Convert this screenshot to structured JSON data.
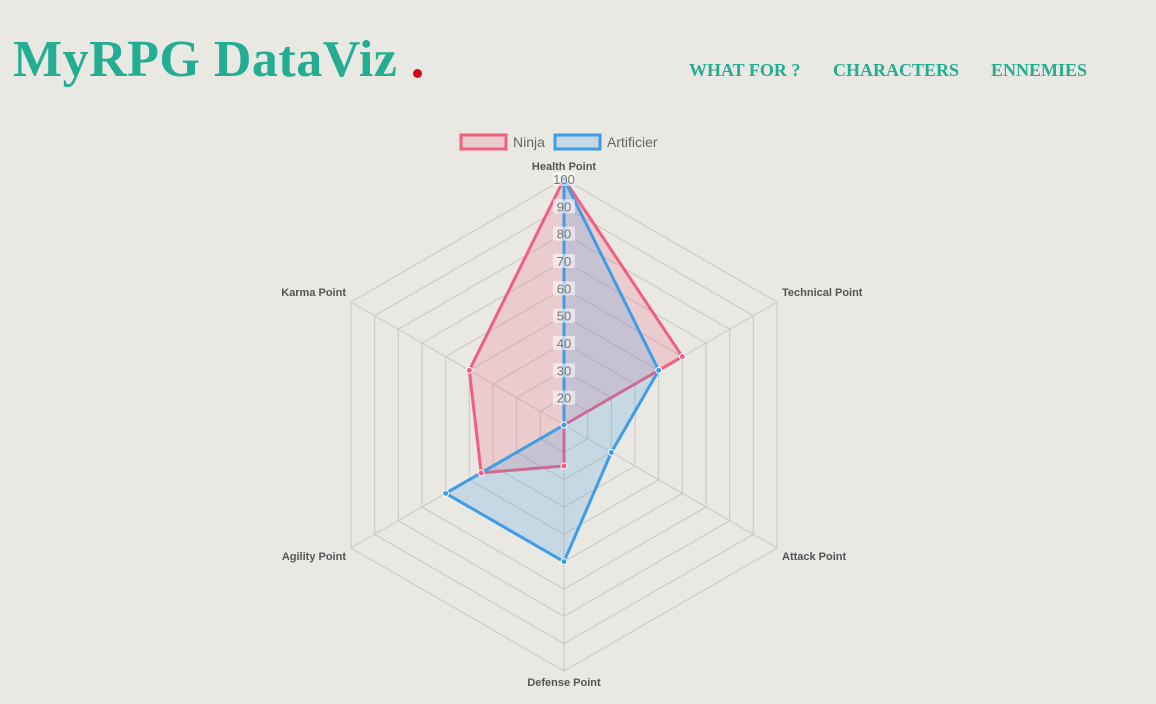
{
  "header": {
    "logo_text": "MyRPG DataViz",
    "nav": [
      {
        "label": "WHAT FOR ?"
      },
      {
        "label": "CHARACTERS"
      },
      {
        "label": "ENNEMIES"
      }
    ]
  },
  "colors": {
    "brand": "#23ad92",
    "background": "#e9e8e3",
    "logo_dot": "#d0091a",
    "grid": "#c8c7c2"
  },
  "chart_data": {
    "type": "radar",
    "axes": [
      "Health Point",
      "Technical Point",
      "Attack Point",
      "Defense Point",
      "Agility Point",
      "Karma Point"
    ],
    "r_range": [
      10,
      100
    ],
    "ticks": [
      20,
      30,
      40,
      50,
      60,
      70,
      80,
      90,
      100
    ],
    "grid": true,
    "legend_position": "top",
    "series": [
      {
        "name": "Ninja",
        "values": [
          100,
          60,
          10,
          25,
          45,
          50
        ],
        "color": "#f0607e",
        "fill": "rgba(240,96,126,0.2)"
      },
      {
        "name": "Artificier",
        "values": [
          100,
          50,
          30,
          60,
          60,
          10
        ],
        "color": "#3e9de6",
        "fill": "rgba(62,157,230,0.2)"
      }
    ]
  }
}
